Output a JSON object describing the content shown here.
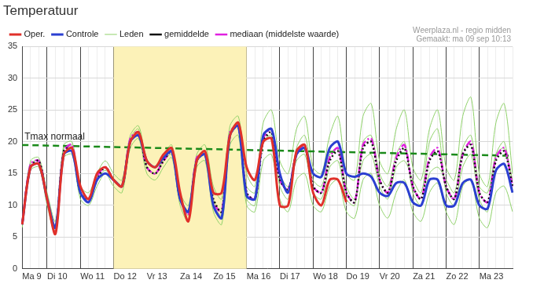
{
  "chart_data": {
    "type": "line",
    "title": "Temperatuur",
    "source": "Weerplaza.nl - regio midden",
    "created": "Gemaakt: ma 09 sep 10:13",
    "categories": [
      "Ma 9",
      null,
      null,
      "Di 10",
      null,
      null,
      null,
      "Wo 11",
      null,
      null,
      null,
      "Do 12",
      null,
      null,
      null,
      "Vr 13",
      null,
      null,
      null,
      "Za 14",
      null,
      null,
      null,
      "Zo 15",
      null,
      null,
      null,
      "Ma 16",
      null,
      null,
      null,
      "Di 17",
      null,
      null,
      null,
      "Wo 18",
      null,
      null,
      null,
      "Do 19",
      null,
      null,
      null,
      "Vr 20",
      null,
      null,
      null,
      "Za 21",
      null,
      null,
      null,
      "Zo 22",
      null,
      null,
      null,
      "Ma 23",
      null,
      null,
      null,
      null
    ],
    "series": [
      {
        "name": "Oper.",
        "color": "#e0302a",
        "line_style": "solid",
        "values": [
          7,
          16,
          16.5,
          11,
          5.5,
          18,
          19,
          13,
          11,
          15,
          16,
          14,
          13,
          20,
          21.5,
          17,
          16,
          18,
          19,
          12,
          7.5,
          17,
          18.5,
          12,
          12,
          21,
          23,
          16,
          14,
          20,
          20.5,
          10,
          10,
          18.5,
          19.5,
          12,
          10,
          14,
          14,
          10.5,
          null,
          null,
          null,
          null,
          null,
          null,
          null,
          null,
          null,
          null,
          null,
          null,
          null,
          null,
          null,
          null,
          null,
          null,
          null,
          null
        ]
      },
      {
        "name": "Controle",
        "color": "#2b3fd1",
        "line_style": "solid",
        "values": [
          7,
          16,
          16.5,
          11,
          6.5,
          18,
          18.5,
          12,
          10.5,
          14,
          15,
          14,
          13,
          20,
          21,
          17,
          16,
          17.5,
          18.5,
          11,
          9,
          17,
          18,
          10,
          8,
          21,
          22.5,
          11.5,
          11,
          21,
          22,
          15,
          12,
          18,
          19,
          15,
          14.5,
          19,
          20,
          15,
          14.5,
          15,
          14.5,
          12,
          11.5,
          13.5,
          13.5,
          10.5,
          10,
          14,
          14,
          10,
          10,
          13.5,
          14,
          10,
          9.5,
          15.5,
          16.5,
          12
        ]
      },
      {
        "name": "Leden",
        "color": "#8fd16a",
        "line_style": "solid",
        "values": [
          7.5,
          17,
          17.5,
          12,
          7.5,
          19.5,
          20,
          13,
          12,
          15,
          17,
          15,
          14,
          21,
          22.5,
          17,
          16,
          18,
          19.5,
          12,
          10,
          18,
          19.5,
          13,
          11,
          22.5,
          24,
          15,
          13,
          23,
          25,
          17,
          15,
          22,
          24,
          16,
          15,
          21,
          24,
          15,
          14,
          24,
          26,
          17,
          15,
          22,
          25,
          16,
          14,
          22,
          25,
          16,
          14,
          24,
          27,
          15,
          13,
          23,
          26,
          15
        ]
      },
      {
        "name": "Leden",
        "color": "#8fd16a",
        "line_style": "solid",
        "values": [
          6.5,
          15.5,
          16,
          10,
          5.5,
          17.5,
          18,
          11,
          10,
          13,
          15,
          13,
          12,
          19,
          20.5,
          15,
          14,
          16,
          17.5,
          10,
          7.5,
          16,
          17,
          9,
          7,
          19.5,
          21,
          10,
          9,
          17,
          18,
          11,
          9,
          14,
          15,
          10,
          9,
          13,
          14,
          9,
          8,
          14,
          15,
          10,
          8,
          12,
          14,
          9,
          7.5,
          12,
          13.5,
          9,
          7,
          13,
          14,
          8,
          6.5,
          12,
          13,
          9
        ]
      },
      {
        "name": "Leden",
        "color": "#8fd16a",
        "line_style": "solid",
        "values": [
          7,
          16,
          16.5,
          11,
          6,
          18,
          19,
          12,
          11,
          14,
          15.5,
          14,
          13,
          20,
          21,
          16,
          15,
          17,
          18,
          11,
          9,
          17,
          18,
          11,
          9,
          21,
          22.5,
          13,
          12,
          21,
          22,
          15,
          13,
          17,
          18,
          12,
          11,
          16,
          17,
          11,
          10,
          20,
          21,
          15,
          13,
          18,
          20,
          12,
          10,
          15,
          16,
          14,
          12,
          19,
          21,
          13,
          12,
          18,
          19,
          14
        ]
      },
      {
        "name": "Leden",
        "color": "#8fd16a",
        "line_style": "solid",
        "values": [
          7,
          16.5,
          17,
          11,
          7,
          19,
          19.5,
          12,
          11,
          14.5,
          16,
          14,
          13,
          20.5,
          22,
          16,
          15,
          17.5,
          19,
          11,
          8.5,
          17.5,
          18.5,
          10,
          8.5,
          21.5,
          23,
          11,
          10,
          20,
          21,
          13,
          11,
          19,
          21,
          14,
          13,
          18,
          19,
          13,
          11,
          17,
          18,
          13,
          11,
          16,
          17,
          14,
          12,
          20,
          22,
          12,
          10,
          16,
          18,
          11,
          9,
          18,
          20,
          12
        ]
      },
      {
        "name": "gemiddelde",
        "color": "#111111",
        "line_style": "dotted",
        "values": [
          7,
          16,
          17,
          11,
          6.5,
          18.5,
          19,
          12,
          11,
          14,
          16,
          14,
          13,
          20,
          21.5,
          16,
          15,
          17,
          18.5,
          11,
          9,
          17,
          18,
          11,
          9,
          21,
          22.5,
          12,
          11,
          20,
          21.5,
          14,
          12.5,
          18,
          19,
          13,
          12,
          17,
          18.5,
          12,
          10.5,
          19,
          20,
          14,
          12,
          17,
          19,
          13,
          11,
          17,
          18.5,
          13,
          11,
          18,
          19.5,
          12,
          10.5,
          17,
          18.5,
          13
        ]
      },
      {
        "name": "mediaan (middelste waarde)",
        "color": "#e020e0",
        "line_style": "dashdot",
        "values": [
          7,
          16.5,
          17,
          11,
          6,
          18.5,
          19.5,
          12,
          11,
          14.5,
          16,
          14,
          13,
          20.5,
          21.5,
          16,
          15,
          17,
          18.5,
          11,
          8.5,
          17.5,
          18,
          10.5,
          9,
          21.5,
          22.5,
          12,
          11,
          20.5,
          22,
          14,
          12.5,
          18,
          19.5,
          13,
          12,
          17.5,
          19,
          12,
          10.5,
          19.5,
          20.5,
          14,
          12,
          17.5,
          19.5,
          13,
          11,
          17.5,
          19,
          13,
          11,
          18,
          20,
          12,
          10.5,
          17.5,
          19,
          13
        ]
      }
    ],
    "reference_line": {
      "name": "Tmax normaal",
      "color": "#1a8a1a",
      "line_style": "dashed",
      "values": [
        19.5,
        null,
        null,
        null,
        null,
        null,
        null,
        null,
        null,
        null,
        null,
        null,
        null,
        null,
        null,
        null,
        null,
        null,
        null,
        null,
        null,
        null,
        null,
        null,
        null,
        null,
        null,
        null,
        null,
        null,
        null,
        null,
        null,
        null,
        null,
        null,
        null,
        null,
        null,
        null,
        null,
        null,
        null,
        null,
        null,
        null,
        null,
        null,
        null,
        null,
        null,
        null,
        null,
        null,
        null,
        null,
        null,
        null,
        null,
        17.8
      ]
    },
    "highlight": {
      "from": "Do 12",
      "to": "Ma 16",
      "color": "#fcf2b8"
    },
    "ylim": [
      0,
      35
    ],
    "yticks": [
      0,
      5,
      10,
      15,
      20,
      25,
      30,
      35
    ],
    "grid": true,
    "legend": "top"
  }
}
